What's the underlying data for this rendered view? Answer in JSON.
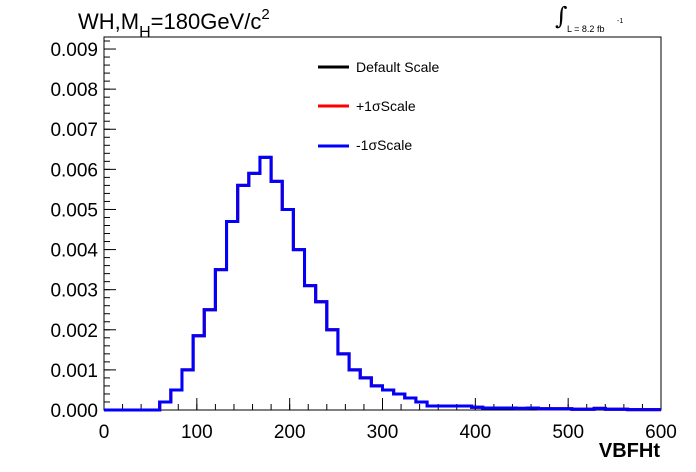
{
  "title": {
    "prefix": "WH,M",
    "subscript": "H",
    "value": "=180GeV/c",
    "superscript": "2"
  },
  "lumi": {
    "integral": "∫",
    "text": "L = 8.2 fb",
    "exponent": "-1"
  },
  "legend": {
    "items": [
      {
        "label": "Default Scale",
        "color": "#000000"
      },
      {
        "label": "+1σScale",
        "color": "#ff0000"
      },
      {
        "label": "-1σScale",
        "color": "#0000ff"
      }
    ]
  },
  "chart_data": {
    "type": "histogram",
    "title": "WH,M_H=180GeV/c^2",
    "xlabel": "VBFHt",
    "ylabel": "",
    "xlim": [
      0,
      600
    ],
    "ylim": [
      0,
      0.0093
    ],
    "x_ticks": [
      0,
      100,
      200,
      300,
      400,
      500,
      600
    ],
    "x_tick_labels": [
      "0",
      "100",
      "200",
      "300",
      "400",
      "500",
      "600"
    ],
    "y_ticks": [
      0,
      0.001,
      0.002,
      0.003,
      0.004,
      0.005,
      0.006,
      0.007,
      0.008,
      0.009
    ],
    "y_tick_labels": [
      "0.000",
      "0.001",
      "0.002",
      "0.003",
      "0.004",
      "0.005",
      "0.006",
      "0.007",
      "0.008",
      "0.009"
    ],
    "bin_width": 12,
    "bin_edges_start": 0,
    "series": [
      {
        "name": "Default Scale",
        "color": "#000000",
        "values": [
          0,
          0,
          0,
          0,
          0,
          0.0002,
          0.0005,
          0.001,
          0.00185,
          0.0025,
          0.0035,
          0.0047,
          0.0056,
          0.0059,
          0.0063,
          0.0057,
          0.005,
          0.004,
          0.0031,
          0.0027,
          0.002,
          0.0014,
          0.001,
          0.0008,
          0.0006,
          0.0005,
          0.0004,
          0.0003,
          0.0002,
          0.0001,
          0.0001,
          0.0001,
          0.0001,
          7e-05,
          5e-05,
          5e-05,
          5e-05,
          4e-05,
          5e-05,
          3e-05,
          3e-05,
          3e-05,
          2e-05,
          2e-05,
          4e-05,
          2e-05,
          2e-05,
          1e-05,
          1e-05,
          1e-05
        ]
      },
      {
        "name": "+1σScale",
        "color": "#ff0000",
        "values": [
          0,
          0,
          0,
          0,
          0,
          0.0002,
          0.0005,
          0.001,
          0.00185,
          0.0025,
          0.0035,
          0.0047,
          0.0056,
          0.0059,
          0.0063,
          0.0057,
          0.005,
          0.004,
          0.0031,
          0.0027,
          0.002,
          0.0014,
          0.001,
          0.0008,
          0.0006,
          0.0005,
          0.0004,
          0.0003,
          0.0002,
          0.0001,
          0.0001,
          0.0001,
          0.0001,
          7e-05,
          5e-05,
          5e-05,
          5e-05,
          4e-05,
          5e-05,
          3e-05,
          3e-05,
          3e-05,
          2e-05,
          2e-05,
          4e-05,
          2e-05,
          2e-05,
          1e-05,
          1e-05,
          1e-05
        ]
      },
      {
        "name": "-1σScale",
        "color": "#0000ff",
        "values": [
          0,
          0,
          0,
          0,
          0,
          0.0002,
          0.0005,
          0.001,
          0.00185,
          0.0025,
          0.0035,
          0.0047,
          0.0056,
          0.0059,
          0.0063,
          0.0057,
          0.005,
          0.004,
          0.0031,
          0.0027,
          0.002,
          0.0014,
          0.001,
          0.0008,
          0.0006,
          0.0005,
          0.0004,
          0.0003,
          0.0002,
          0.0001,
          0.0001,
          0.0001,
          0.0001,
          7e-05,
          5e-05,
          5e-05,
          5e-05,
          4e-05,
          5e-05,
          3e-05,
          3e-05,
          3e-05,
          2e-05,
          2e-05,
          4e-05,
          2e-05,
          2e-05,
          1e-05,
          1e-05,
          1e-05
        ]
      }
    ],
    "grid": false,
    "legend_position": "top-center"
  }
}
